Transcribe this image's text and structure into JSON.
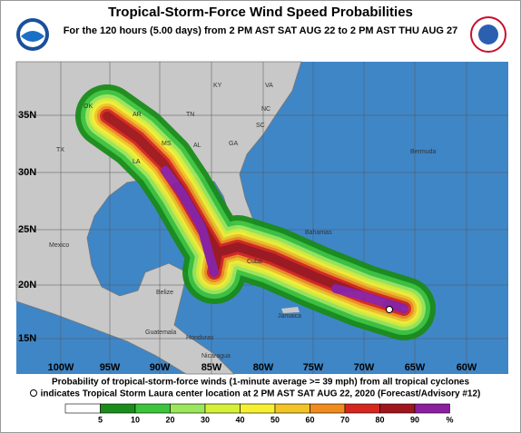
{
  "header": {
    "title": "Tropical-Storm-Force Wind Speed Probabilities",
    "subtitle": "For the 120 hours (5.00 days) from 2 PM AST SAT AUG 22 to 2 PM AST THU AUG 27"
  },
  "map": {
    "lat_labels": [
      "35N",
      "30N",
      "25N",
      "20N",
      "15N"
    ],
    "lon_labels": [
      "100W",
      "95W",
      "90W",
      "85W",
      "80W",
      "75W",
      "70W",
      "65W",
      "60W"
    ],
    "places": [
      "OK",
      "AR",
      "TN",
      "KY",
      "VA",
      "NC",
      "SC",
      "GA",
      "AL",
      "MS",
      "LA",
      "TX",
      "Mexico",
      "Cuba",
      "Bahamas",
      "Bermuda",
      "Jamaica",
      "Belize",
      "Guatemala",
      "Honduras",
      "Nicaragua"
    ]
  },
  "footer": {
    "line1": "Probability of tropical-storm-force winds (1-minute average >= 39 mph) from all tropical cyclones",
    "line2": "indicates Tropical Storm Laura center location at 2 PM AST SAT AUG 22, 2020 (Forecast/Advisory #12)"
  },
  "legend": {
    "labels": [
      "5",
      "10",
      "20",
      "30",
      "40",
      "50",
      "60",
      "70",
      "80",
      "90",
      "%"
    ],
    "colors": [
      "#ffffff",
      "#1a8c1a",
      "#3cc43c",
      "#9be65a",
      "#d6f03a",
      "#f7f032",
      "#f2c427",
      "#f08c1e",
      "#d7261e",
      "#a0161c",
      "#8c1ea0"
    ]
  }
}
